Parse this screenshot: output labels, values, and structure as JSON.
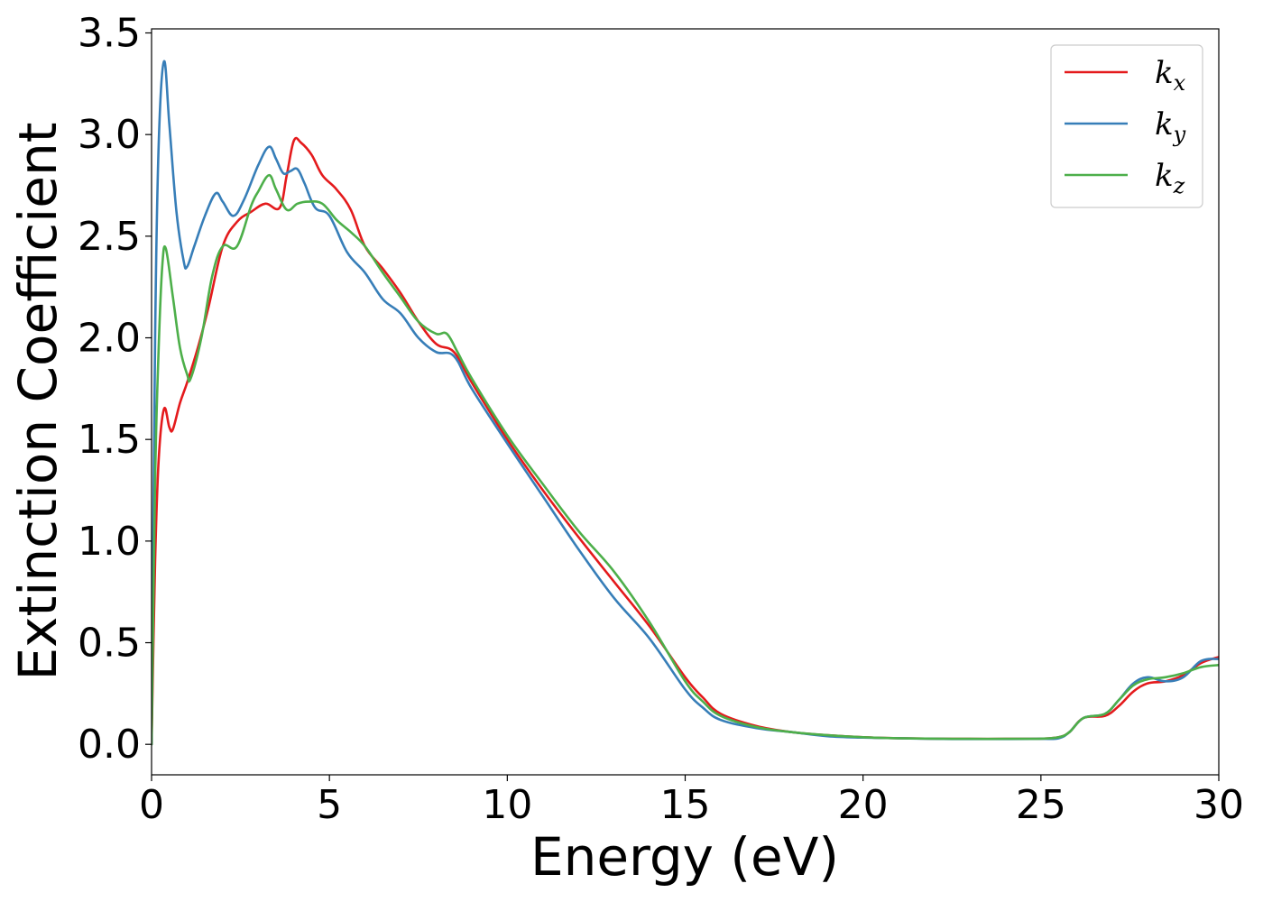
{
  "chart_data": {
    "type": "line",
    "title": "",
    "xlabel": "Energy (eV)",
    "ylabel": "Extinction Coefficient",
    "xlim": [
      0,
      30
    ],
    "ylim": [
      -0.15,
      3.52
    ],
    "xticks": [
      0,
      5,
      10,
      15,
      20,
      25,
      30
    ],
    "yticks": [
      0.0,
      0.5,
      1.0,
      1.5,
      2.0,
      2.5,
      3.0,
      3.5
    ],
    "xtick_labels": [
      "0",
      "5",
      "10",
      "15",
      "20",
      "25",
      "30"
    ],
    "ytick_labels": [
      "0.0",
      "0.5",
      "1.0",
      "1.5",
      "2.0",
      "2.5",
      "3.0",
      "3.5"
    ],
    "grid": false,
    "legend_position": "top-right",
    "series": [
      {
        "name": "k",
        "subscript": "x",
        "color": "#e41a1c",
        "x": [
          0,
          0.1,
          0.2,
          0.35,
          0.5,
          0.6,
          0.8,
          1.0,
          1.3,
          1.6,
          2.0,
          2.4,
          2.8,
          3.2,
          3.6,
          3.8,
          4.0,
          4.2,
          4.5,
          4.8,
          5.2,
          5.6,
          6.0,
          6.5,
          7.0,
          7.5,
          8.0,
          8.5,
          9.0,
          10.0,
          11.0,
          12.0,
          13.0,
          14.0,
          15.0,
          15.5,
          16.0,
          17.0,
          18.0,
          19.0,
          20.0,
          21.0,
          22.0,
          23.0,
          24.0,
          25.0,
          25.5,
          25.8,
          26.2,
          26.8,
          27.2,
          27.6,
          28.0,
          28.5,
          29.0,
          29.5,
          30.0
        ],
        "y": [
          0.0,
          0.9,
          1.4,
          1.65,
          1.56,
          1.55,
          1.68,
          1.78,
          1.95,
          2.15,
          2.45,
          2.57,
          2.62,
          2.66,
          2.64,
          2.8,
          2.97,
          2.96,
          2.9,
          2.8,
          2.73,
          2.63,
          2.45,
          2.34,
          2.22,
          2.08,
          1.97,
          1.93,
          1.78,
          1.5,
          1.25,
          1.02,
          0.8,
          0.58,
          0.33,
          0.23,
          0.15,
          0.09,
          0.06,
          0.045,
          0.035,
          0.03,
          0.028,
          0.027,
          0.027,
          0.028,
          0.035,
          0.06,
          0.13,
          0.14,
          0.19,
          0.26,
          0.3,
          0.31,
          0.34,
          0.4,
          0.43
        ]
      },
      {
        "name": "k",
        "subscript": "y",
        "color": "#377eb8",
        "x": [
          0,
          0.1,
          0.2,
          0.35,
          0.5,
          0.7,
          0.9,
          1.0,
          1.2,
          1.5,
          1.8,
          2.0,
          2.3,
          2.6,
          3.0,
          3.3,
          3.5,
          3.7,
          3.9,
          4.1,
          4.3,
          4.6,
          5.0,
          5.5,
          6.0,
          6.5,
          7.0,
          7.5,
          8.0,
          8.5,
          9.0,
          10.0,
          11.0,
          12.0,
          13.0,
          14.0,
          15.0,
          15.5,
          16.0,
          17.0,
          18.0,
          19.0,
          20.0,
          21.0,
          22.0,
          23.0,
          24.0,
          25.0,
          25.5,
          25.8,
          26.2,
          26.8,
          27.2,
          27.6,
          28.0,
          28.5,
          29.0,
          29.5,
          30.0
        ],
        "y": [
          0.0,
          2.0,
          2.95,
          3.36,
          3.05,
          2.62,
          2.38,
          2.35,
          2.45,
          2.6,
          2.71,
          2.67,
          2.6,
          2.68,
          2.85,
          2.94,
          2.88,
          2.81,
          2.82,
          2.83,
          2.76,
          2.64,
          2.6,
          2.42,
          2.32,
          2.19,
          2.12,
          2.0,
          1.93,
          1.91,
          1.75,
          1.48,
          1.22,
          0.96,
          0.72,
          0.52,
          0.27,
          0.18,
          0.12,
          0.08,
          0.06,
          0.04,
          0.033,
          0.03,
          0.027,
          0.026,
          0.026,
          0.027,
          0.03,
          0.06,
          0.13,
          0.15,
          0.22,
          0.3,
          0.33,
          0.31,
          0.33,
          0.41,
          0.42
        ]
      },
      {
        "name": "k",
        "subscript": "z",
        "color": "#4daf4a",
        "x": [
          0,
          0.1,
          0.2,
          0.3,
          0.4,
          0.6,
          0.8,
          1.0,
          1.1,
          1.4,
          1.7,
          2.0,
          2.4,
          2.8,
          3.0,
          3.3,
          3.5,
          3.8,
          4.1,
          4.4,
          4.8,
          5.2,
          5.6,
          6.0,
          6.5,
          7.0,
          7.5,
          8.0,
          8.3,
          8.6,
          9.0,
          10.0,
          11.0,
          12.0,
          13.0,
          14.0,
          15.0,
          15.5,
          16.0,
          17.0,
          18.0,
          19.0,
          20.0,
          21.0,
          22.0,
          23.0,
          24.0,
          25.0,
          25.5,
          25.8,
          26.2,
          26.8,
          27.2,
          27.6,
          28.0,
          28.5,
          29.0,
          29.5,
          30.0
        ],
        "y": [
          0.0,
          1.3,
          1.95,
          2.35,
          2.44,
          2.2,
          1.95,
          1.82,
          1.8,
          2.0,
          2.3,
          2.45,
          2.45,
          2.65,
          2.72,
          2.8,
          2.73,
          2.63,
          2.66,
          2.67,
          2.66,
          2.58,
          2.52,
          2.45,
          2.32,
          2.2,
          2.08,
          2.02,
          2.02,
          1.93,
          1.8,
          1.52,
          1.28,
          1.05,
          0.85,
          0.6,
          0.31,
          0.21,
          0.14,
          0.085,
          0.06,
          0.045,
          0.035,
          0.03,
          0.028,
          0.027,
          0.027,
          0.028,
          0.035,
          0.06,
          0.13,
          0.15,
          0.22,
          0.29,
          0.32,
          0.33,
          0.35,
          0.38,
          0.39
        ]
      }
    ]
  }
}
